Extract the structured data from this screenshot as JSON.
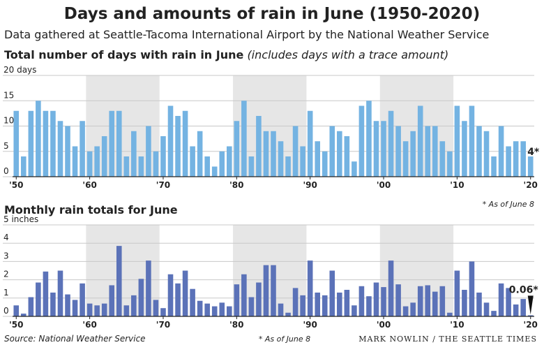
{
  "title": "Days and amounts of rain in June (1950-2020)",
  "subtitle": "Data gathered at Seattle-Tacoma International Airport by the National Weather Service",
  "source": "Source: National Weather Service",
  "credit": "MARK NOWLIN / THE SEATTLE TIMES",
  "chart_data": [
    {
      "type": "bar",
      "title": "Total number of days with rain in June",
      "subtitle": "(includes days with a trace amount)",
      "note": "* As of June 8",
      "color": "#74b3e2",
      "grid": true,
      "categories": [
        "'50",
        null,
        null,
        null,
        null,
        null,
        null,
        null,
        null,
        null,
        "'60",
        null,
        null,
        null,
        null,
        null,
        null,
        null,
        null,
        null,
        "'70",
        null,
        null,
        null,
        null,
        null,
        null,
        null,
        null,
        null,
        "'80",
        null,
        null,
        null,
        null,
        null,
        null,
        null,
        null,
        null,
        "'90",
        null,
        null,
        null,
        null,
        null,
        null,
        null,
        null,
        null,
        "'00",
        null,
        null,
        null,
        null,
        null,
        null,
        null,
        null,
        null,
        "'10",
        null,
        null,
        null,
        null,
        null,
        null,
        null,
        null,
        null,
        "'20"
      ],
      "values": [
        13,
        4,
        13,
        15,
        13,
        13,
        11,
        10,
        6,
        11,
        5,
        6,
        8,
        13,
        13,
        4,
        9,
        4,
        10,
        5,
        8,
        14,
        12,
        13,
        6,
        9,
        4,
        2,
        5,
        6,
        11,
        15,
        4,
        12,
        9,
        9,
        7,
        4,
        10,
        6,
        13,
        7,
        5,
        10,
        9,
        8,
        3,
        14,
        15,
        11,
        11,
        13,
        10,
        7,
        9,
        14,
        10,
        10,
        7,
        5,
        14,
        11,
        14,
        10,
        9,
        4,
        10,
        6,
        7,
        7,
        4
      ],
      "value_labels": [
        null,
        null,
        null,
        null,
        null,
        null,
        null,
        null,
        null,
        null,
        null,
        null,
        null,
        null,
        null,
        null,
        null,
        null,
        null,
        null,
        null,
        null,
        null,
        null,
        null,
        null,
        null,
        null,
        null,
        null,
        null,
        null,
        null,
        null,
        null,
        null,
        null,
        null,
        null,
        null,
        null,
        null,
        null,
        null,
        null,
        null,
        null,
        null,
        null,
        null,
        null,
        null,
        null,
        null,
        null,
        null,
        null,
        null,
        null,
        null,
        null,
        null,
        null,
        null,
        null,
        null,
        null,
        null,
        null,
        null,
        "4*"
      ],
      "ylim": [
        0,
        20
      ],
      "yticks": [
        0,
        5,
        10,
        15,
        {
          "value": 20,
          "label": "20 days"
        }
      ]
    },
    {
      "type": "bar",
      "title": "Monthly rain totals for June",
      "note": "* As of June 8",
      "color": "#5b72b8",
      "grid": true,
      "categories": [
        "'50",
        null,
        null,
        null,
        null,
        null,
        null,
        null,
        null,
        null,
        "'60",
        null,
        null,
        null,
        null,
        null,
        null,
        null,
        null,
        null,
        "'70",
        null,
        null,
        null,
        null,
        null,
        null,
        null,
        null,
        null,
        "'80",
        null,
        null,
        null,
        null,
        null,
        null,
        null,
        null,
        null,
        "'90",
        null,
        null,
        null,
        null,
        null,
        null,
        null,
        null,
        null,
        "'00",
        null,
        null,
        null,
        null,
        null,
        null,
        null,
        null,
        null,
        "'10",
        null,
        null,
        null,
        null,
        null,
        null,
        null,
        null,
        null,
        "'20"
      ],
      "values": [
        0.6,
        0.15,
        1.05,
        1.85,
        2.45,
        1.3,
        2.5,
        1.2,
        0.9,
        1.8,
        0.7,
        0.6,
        0.7,
        1.7,
        3.85,
        0.6,
        1.15,
        2.05,
        3.05,
        0.9,
        0.45,
        2.3,
        1.8,
        2.5,
        1.5,
        0.85,
        0.7,
        0.55,
        0.75,
        0.55,
        1.75,
        2.3,
        1.05,
        1.85,
        2.8,
        2.8,
        0.7,
        0.2,
        1.55,
        1.15,
        3.05,
        1.3,
        1.15,
        2.5,
        1.3,
        1.45,
        0.6,
        1.65,
        1.1,
        1.85,
        1.6,
        3.05,
        1.75,
        0.55,
        0.75,
        1.65,
        1.7,
        1.35,
        1.65,
        0.2,
        2.5,
        1.45,
        3.0,
        1.3,
        0.75,
        0.3,
        1.8,
        1.55,
        0.65,
        0.95,
        0.06
      ],
      "value_labels": [
        null,
        null,
        null,
        null,
        null,
        null,
        null,
        null,
        null,
        null,
        null,
        null,
        null,
        null,
        null,
        null,
        null,
        null,
        null,
        null,
        null,
        null,
        null,
        null,
        null,
        null,
        null,
        null,
        null,
        null,
        null,
        null,
        null,
        null,
        null,
        null,
        null,
        null,
        null,
        null,
        null,
        null,
        null,
        null,
        null,
        null,
        null,
        null,
        null,
        null,
        null,
        null,
        null,
        null,
        null,
        null,
        null,
        null,
        null,
        null,
        null,
        null,
        null,
        null,
        null,
        null,
        null,
        null,
        null,
        null,
        "0.06*"
      ],
      "ylim": [
        0,
        5
      ],
      "yticks": [
        0,
        1,
        2,
        3,
        4,
        {
          "value": 5,
          "label": "5 inches"
        }
      ]
    }
  ]
}
